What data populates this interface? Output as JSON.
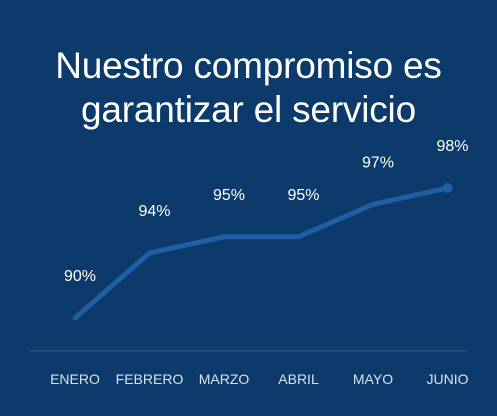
{
  "header": {
    "title_line1": "Nuestro compromiso es",
    "title_line2": "garantizar el servicio"
  },
  "colors": {
    "background": "#0b3a6b",
    "line": "#1f5fa3",
    "text": "#ffffff"
  },
  "chart_data": {
    "type": "line",
    "title": "Nuestro compromiso es garantizar el servicio",
    "categories": [
      "ENERO",
      "FEBRERO",
      "MARZO",
      "ABRIL",
      "MAYO",
      "JUNIO"
    ],
    "series": [
      {
        "values": [
          90,
          94,
          95,
          95,
          97,
          98
        ],
        "labels": [
          "90%",
          "94%",
          "95%",
          "95%",
          "97%",
          "98%"
        ]
      }
    ],
    "grid": false,
    "legend": "none"
  }
}
